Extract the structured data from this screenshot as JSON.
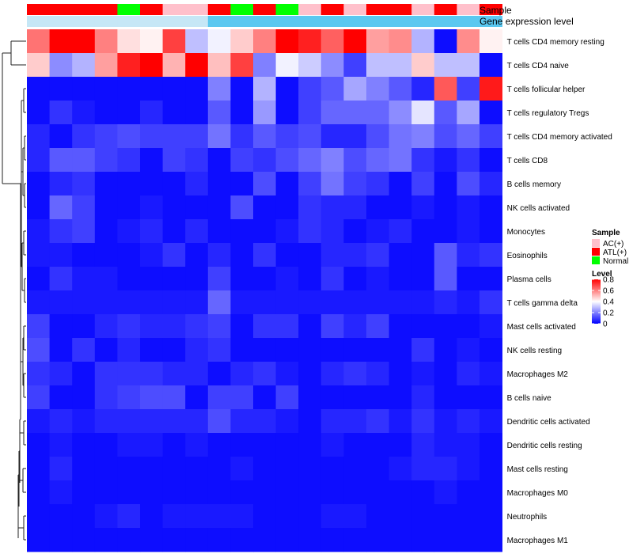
{
  "chart_data": {
    "type": "heatmap",
    "title": "",
    "annotation_tracks": [
      {
        "label": "Sample",
        "values": [
          "ATL(+)",
          "ATL(+)",
          "ATL(+)",
          "ATL(+)",
          "Normal",
          "ATL(+)",
          "AC(+)",
          "AC(+)",
          "ATL(+)",
          "Normal",
          "ATL(+)",
          "Normal",
          "AC(+)",
          "ATL(+)",
          "AC(+)",
          "ATL(+)",
          "ATL(+)",
          "AC(+)",
          "ATL(+)",
          "AC(+)",
          "ATL(+)"
        ]
      },
      {
        "label": "Gene expression level",
        "values": [
          "low",
          "low",
          "low",
          "low",
          "low",
          "low",
          "low",
          "low",
          "high",
          "high",
          "high",
          "high",
          "high",
          "high",
          "high",
          "high",
          "high",
          "high",
          "high",
          "high",
          "high"
        ]
      }
    ],
    "rows": [
      "T cells CD4 memory resting",
      "T cells CD4 naive",
      "T cells follicular helper",
      "T cells regulatory  Tregs",
      "T cells CD4 memory activated",
      "T cells CD8",
      "B cells memory",
      "NK cells activated",
      "Monocytes",
      "Eosinophils",
      "Plasma cells",
      "T cells gamma delta",
      "Mast cells activated",
      "NK cells resting",
      "Macrophages M2",
      "B cells naive",
      "Dendritic cells activated",
      "Dendritic cells resting",
      "Mast cells resting",
      "Macrophages M0",
      "Neutrophils",
      "Macrophages M1"
    ],
    "values": [
      [
        0.62,
        0.82,
        0.82,
        0.6,
        0.45,
        0.42,
        0.7,
        0.3,
        0.38,
        0.48,
        0.6,
        0.82,
        0.75,
        0.65,
        0.82,
        0.55,
        0.58,
        0.28,
        0.02,
        0.58,
        0.42
      ],
      [
        0.48,
        0.22,
        0.28,
        0.55,
        0.75,
        0.8,
        0.52,
        0.82,
        0.5,
        0.7,
        0.2,
        0.38,
        0.32,
        0.22,
        0.1,
        0.3,
        0.3,
        0.48,
        0.3,
        0.3,
        0.02
      ],
      [
        0.02,
        0.02,
        0.02,
        0.02,
        0.02,
        0.02,
        0.02,
        0.02,
        0.2,
        0.02,
        0.28,
        0.02,
        0.1,
        0.14,
        0.26,
        0.2,
        0.14,
        0.06,
        0.66,
        0.1,
        0.76
      ],
      [
        0.02,
        0.08,
        0.04,
        0.02,
        0.02,
        0.06,
        0.02,
        0.02,
        0.14,
        0.02,
        0.24,
        0.02,
        0.1,
        0.16,
        0.16,
        0.16,
        0.22,
        0.36,
        0.14,
        0.26,
        0.02
      ],
      [
        0.06,
        0.02,
        0.08,
        0.1,
        0.12,
        0.1,
        0.1,
        0.1,
        0.18,
        0.08,
        0.14,
        0.1,
        0.12,
        0.06,
        0.06,
        0.12,
        0.18,
        0.2,
        0.12,
        0.16,
        0.1
      ],
      [
        0.06,
        0.14,
        0.14,
        0.1,
        0.08,
        0.02,
        0.1,
        0.08,
        0.02,
        0.1,
        0.08,
        0.12,
        0.16,
        0.2,
        0.12,
        0.16,
        0.18,
        0.08,
        0.04,
        0.08,
        0.02
      ],
      [
        0.02,
        0.06,
        0.08,
        0.02,
        0.02,
        0.02,
        0.02,
        0.06,
        0.02,
        0.02,
        0.12,
        0.02,
        0.1,
        0.18,
        0.1,
        0.08,
        0.02,
        0.1,
        0.02,
        0.12,
        0.06
      ],
      [
        0.02,
        0.16,
        0.1,
        0.02,
        0.02,
        0.04,
        0.02,
        0.02,
        0.02,
        0.12,
        0.02,
        0.02,
        0.08,
        0.06,
        0.06,
        0.02,
        0.02,
        0.04,
        0.02,
        0.04,
        0.02
      ],
      [
        0.04,
        0.08,
        0.1,
        0.02,
        0.04,
        0.06,
        0.02,
        0.06,
        0.02,
        0.02,
        0.02,
        0.04,
        0.08,
        0.06,
        0.02,
        0.04,
        0.06,
        0.02,
        0.02,
        0.04,
        0.02
      ],
      [
        0.04,
        0.04,
        0.02,
        0.02,
        0.02,
        0.04,
        0.08,
        0.02,
        0.06,
        0.02,
        0.08,
        0.02,
        0.02,
        0.06,
        0.06,
        0.08,
        0.02,
        0.02,
        0.14,
        0.06,
        0.08
      ],
      [
        0.02,
        0.08,
        0.04,
        0.04,
        0.02,
        0.02,
        0.02,
        0.02,
        0.1,
        0.02,
        0.02,
        0.04,
        0.02,
        0.08,
        0.02,
        0.04,
        0.02,
        0.02,
        0.14,
        0.02,
        0.02
      ],
      [
        0.04,
        0.04,
        0.04,
        0.04,
        0.04,
        0.04,
        0.04,
        0.04,
        0.16,
        0.04,
        0.04,
        0.04,
        0.04,
        0.04,
        0.04,
        0.04,
        0.04,
        0.04,
        0.06,
        0.04,
        0.08
      ],
      [
        0.1,
        0.02,
        0.02,
        0.06,
        0.08,
        0.06,
        0.06,
        0.08,
        0.1,
        0.02,
        0.08,
        0.08,
        0.02,
        0.1,
        0.06,
        0.1,
        0.02,
        0.02,
        0.02,
        0.02,
        0.04
      ],
      [
        0.12,
        0.02,
        0.08,
        0.02,
        0.06,
        0.02,
        0.02,
        0.06,
        0.08,
        0.02,
        0.02,
        0.02,
        0.02,
        0.02,
        0.02,
        0.02,
        0.02,
        0.08,
        0.02,
        0.04,
        0.02
      ],
      [
        0.08,
        0.06,
        0.02,
        0.08,
        0.08,
        0.08,
        0.06,
        0.06,
        0.02,
        0.06,
        0.08,
        0.04,
        0.02,
        0.06,
        0.08,
        0.06,
        0.02,
        0.04,
        0.02,
        0.06,
        0.04
      ],
      [
        0.1,
        0.02,
        0.02,
        0.08,
        0.1,
        0.12,
        0.12,
        0.02,
        0.1,
        0.1,
        0.02,
        0.1,
        0.02,
        0.02,
        0.02,
        0.02,
        0.02,
        0.06,
        0.02,
        0.02,
        0.02
      ],
      [
        0.04,
        0.06,
        0.04,
        0.06,
        0.06,
        0.06,
        0.06,
        0.06,
        0.12,
        0.06,
        0.06,
        0.04,
        0.02,
        0.06,
        0.06,
        0.08,
        0.04,
        0.08,
        0.04,
        0.06,
        0.04
      ],
      [
        0.02,
        0.04,
        0.02,
        0.02,
        0.04,
        0.04,
        0.02,
        0.04,
        0.02,
        0.02,
        0.02,
        0.02,
        0.02,
        0.04,
        0.02,
        0.02,
        0.02,
        0.06,
        0.04,
        0.04,
        0.02
      ],
      [
        0.02,
        0.06,
        0.02,
        0.02,
        0.02,
        0.02,
        0.02,
        0.02,
        0.02,
        0.04,
        0.02,
        0.02,
        0.02,
        0.02,
        0.02,
        0.02,
        0.04,
        0.06,
        0.06,
        0.04,
        0.02
      ],
      [
        0.02,
        0.04,
        0.02,
        0.02,
        0.02,
        0.02,
        0.02,
        0.02,
        0.02,
        0.02,
        0.02,
        0.02,
        0.02,
        0.02,
        0.02,
        0.02,
        0.02,
        0.02,
        0.04,
        0.02,
        0.02
      ],
      [
        0.02,
        0.02,
        0.02,
        0.04,
        0.06,
        0.02,
        0.04,
        0.04,
        0.04,
        0.04,
        0.02,
        0.02,
        0.02,
        0.04,
        0.04,
        0.02,
        0.02,
        0.02,
        0.02,
        0.02,
        0.02
      ],
      [
        0.02,
        0.02,
        0.02,
        0.02,
        0.02,
        0.02,
        0.02,
        0.02,
        0.02,
        0.02,
        0.02,
        0.02,
        0.02,
        0.02,
        0.02,
        0.02,
        0.02,
        0.02,
        0.02,
        0.02,
        0.02
      ]
    ],
    "color_scale": {
      "min": 0,
      "max": 0.8,
      "low": "#0000ff",
      "mid": "#ffffff",
      "high": "#ff0000",
      "mid_value": 0.4
    },
    "row_dendrogram": true,
    "legend": {
      "position": "right",
      "sample_title": "Sample",
      "sample_items": [
        {
          "label": "AC(+)",
          "color": "#ffc0cb"
        },
        {
          "label": "ATL(+)",
          "color": "#ff0000"
        },
        {
          "label": "Normal",
          "color": "#00ff00"
        }
      ],
      "level_title": "Level",
      "level_ticks": [
        "0.8",
        "0.6",
        "0.4",
        "0.2",
        "0"
      ],
      "level_tick_values": [
        0.8,
        0.6,
        0.4,
        0.2,
        0
      ]
    },
    "track_colors": {
      "ATL(+)": "#ff0000",
      "AC(+)": "#ffc0cb",
      "Normal": "#00ff00",
      "low": "#c6e7f6",
      "high": "#5bc8f0"
    }
  }
}
